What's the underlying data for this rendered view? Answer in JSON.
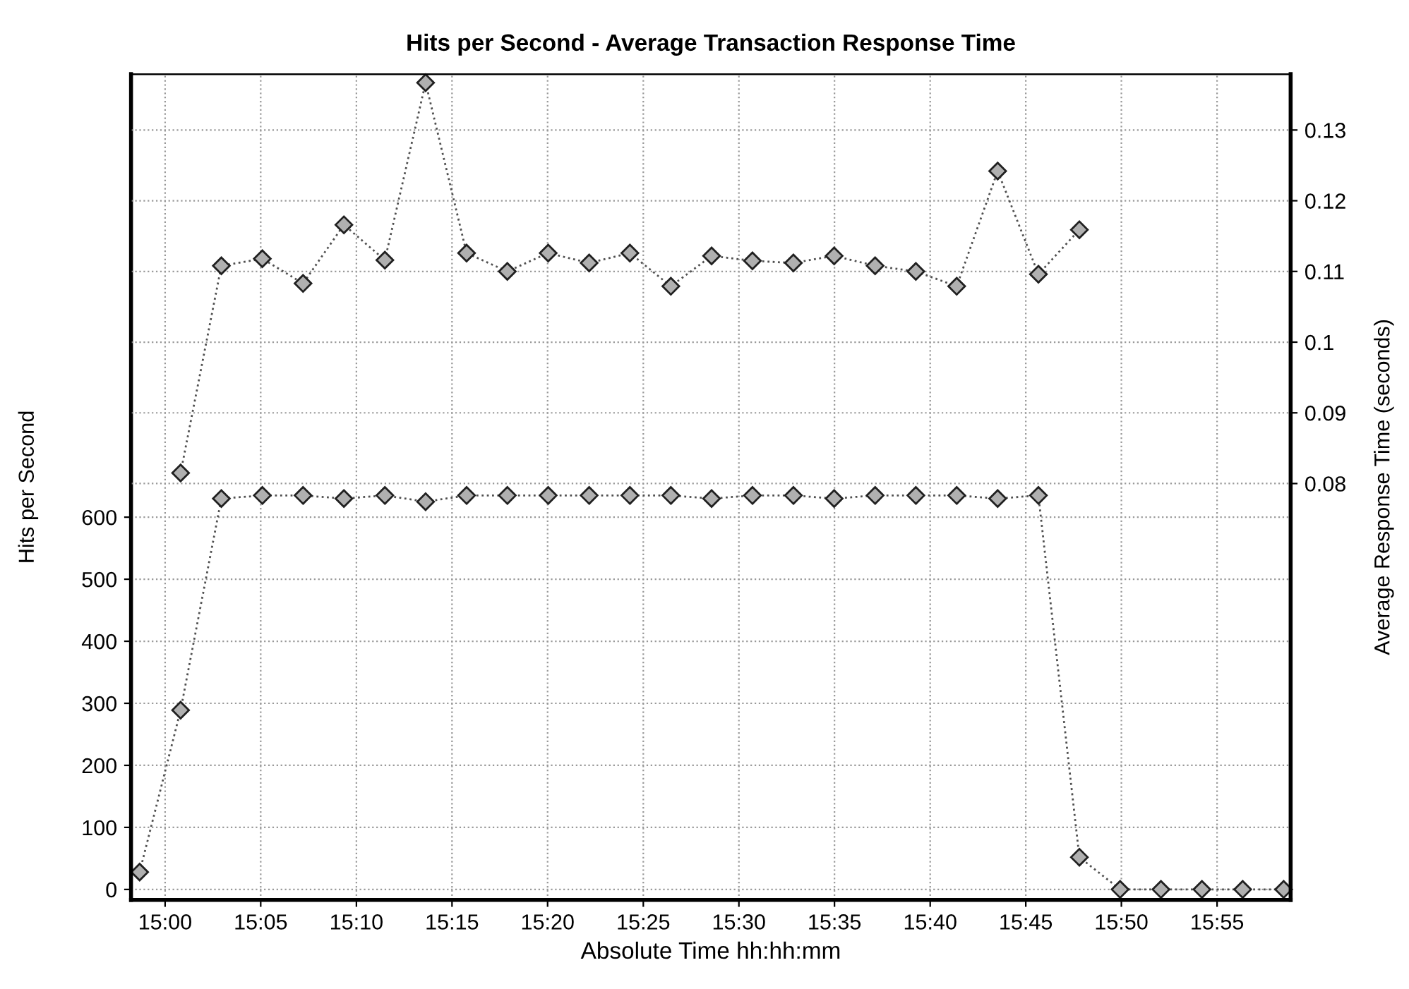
{
  "chart_data": {
    "type": "line",
    "title": "Hits per Second - Average Transaction Response Time",
    "xlabel": "Absolute Time hh:hh:mm",
    "ylabel": "Hits per Second",
    "y2label": "Average Response Time (seconds)",
    "xlim": [
      14.9703,
      15.9808
    ],
    "xticks": [
      {
        "value": 15.0,
        "label": "15:00"
      },
      {
        "value": 15.0833,
        "label": "15:05"
      },
      {
        "value": 15.1667,
        "label": "15:10"
      },
      {
        "value": 15.25,
        "label": "15:15"
      },
      {
        "value": 15.3333,
        "label": "15:20"
      },
      {
        "value": 15.4167,
        "label": "15:25"
      },
      {
        "value": 15.5,
        "label": "15:30"
      },
      {
        "value": 15.5833,
        "label": "15:35"
      },
      {
        "value": 15.6667,
        "label": "15:40"
      },
      {
        "value": 15.75,
        "label": "15:45"
      },
      {
        "value": 15.8333,
        "label": "15:50"
      },
      {
        "value": 15.9167,
        "label": "15:55"
      }
    ],
    "ylim": [
      -17,
      1314
    ],
    "yticks": [
      0,
      100,
      200,
      300,
      400,
      500,
      600
    ],
    "y2lim": [
      0.0211,
      0.1379
    ],
    "y2ticks": [
      0.08,
      0.09,
      0.1,
      0.11,
      0.12,
      0.13
    ],
    "grid": true,
    "marker": "diamond",
    "line_style": "dotted",
    "series": [
      {
        "color": "#505050",
        "x": [
          14.9778,
          15.0135,
          15.049,
          15.0847,
          15.1202,
          15.1558,
          15.1915,
          15.227,
          15.2627,
          15.2982,
          15.3338,
          15.3695,
          15.405,
          15.4407,
          15.4762,
          15.5118,
          15.5475,
          15.583,
          15.6187,
          15.6542,
          15.6898,
          15.7255,
          15.761,
          15.7967,
          15.8322,
          15.8678,
          15.9035,
          15.939,
          15.9747
        ],
        "values": [
          28,
          289,
          630,
          635,
          635,
          630,
          635,
          625,
          635,
          635,
          635,
          635,
          635,
          635,
          630,
          635,
          635,
          630,
          635,
          635,
          635,
          630,
          635,
          52,
          0,
          0,
          0,
          0,
          0
        ]
      },
      {
        "color": "#505050",
        "axis": "y2",
        "x": [
          15.0135,
          15.049,
          15.0847,
          15.1202,
          15.1558,
          15.1915,
          15.227,
          15.2627,
          15.2982,
          15.3338,
          15.3695,
          15.405,
          15.4407,
          15.4762,
          15.5118,
          15.5475,
          15.583,
          15.6187,
          15.6542,
          15.6898,
          15.7255,
          15.761,
          15.7967
        ],
        "values": [
          0.0815,
          0.1108,
          0.1118,
          0.1083,
          0.1166,
          0.1116,
          0.1367,
          0.1126,
          0.11,
          0.1126,
          0.1112,
          0.1126,
          0.1079,
          0.1122,
          0.1115,
          0.1112,
          0.1122,
          0.1108,
          0.11,
          0.1079,
          0.1242,
          0.1096,
          0.1159
        ]
      }
    ]
  }
}
